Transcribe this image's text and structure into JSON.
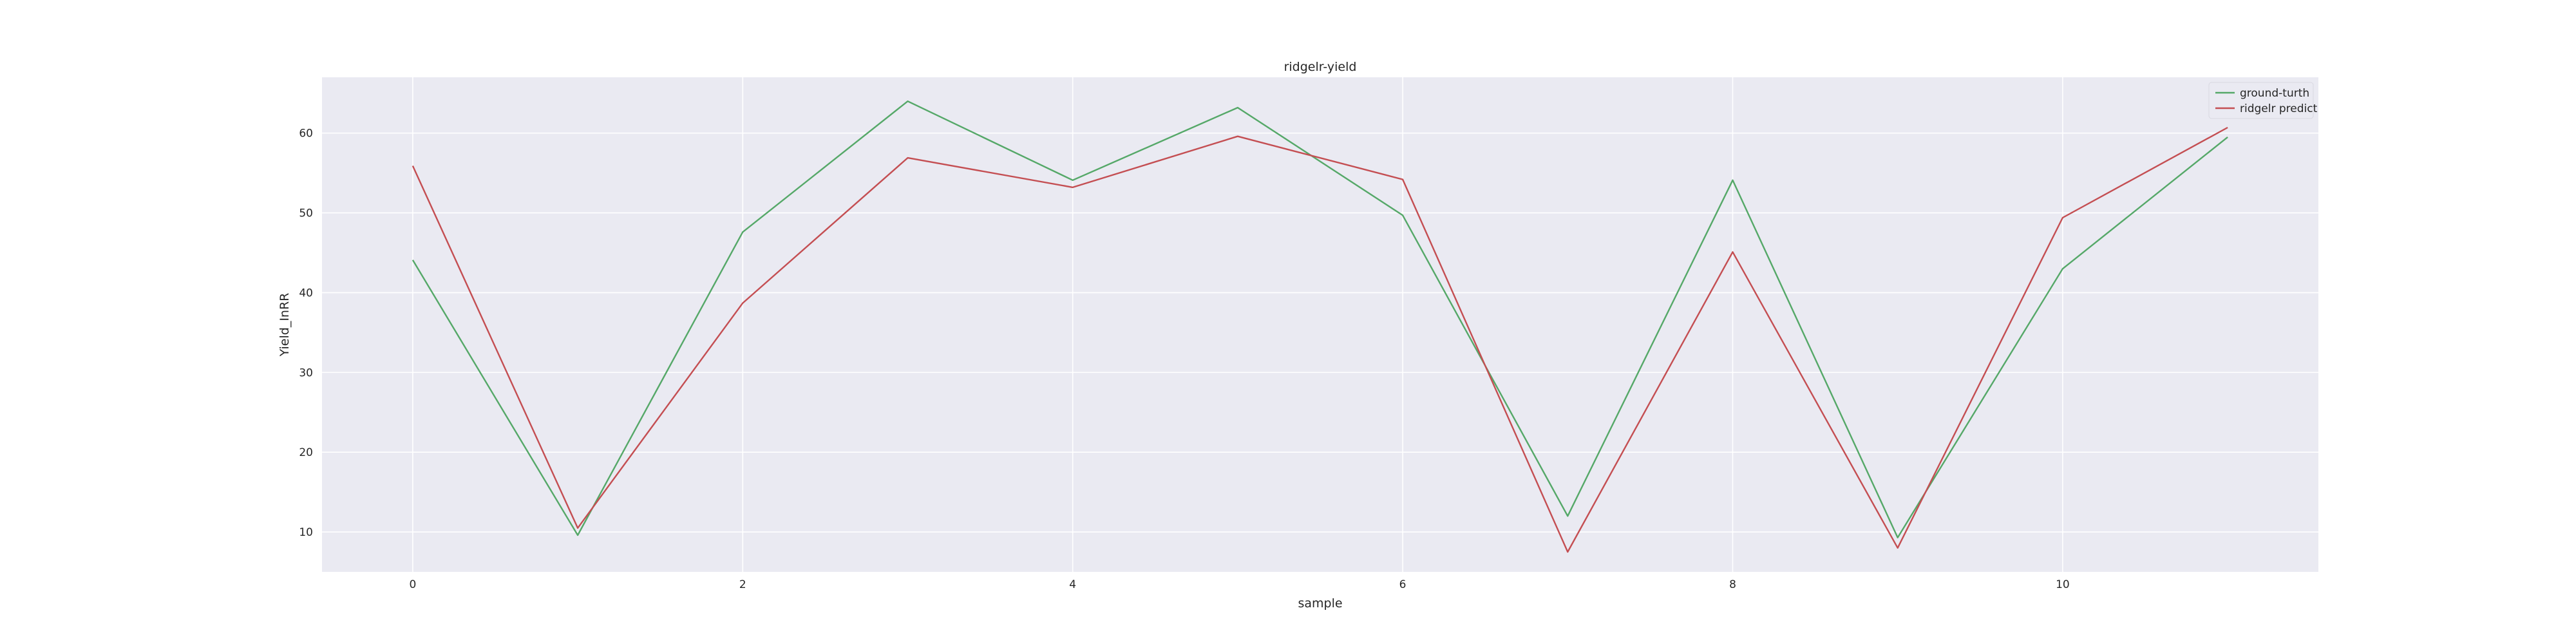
{
  "chart_data": {
    "type": "line",
    "title": "ridgelr-yield",
    "xlabel": "sample",
    "ylabel": "Yield_InRR",
    "x": [
      0,
      1,
      2,
      3,
      4,
      5,
      6,
      7,
      8,
      9,
      10,
      11
    ],
    "xlim": [
      -0.55,
      11.55
    ],
    "ylim": [
      5,
      67
    ],
    "xticks": [
      0,
      2,
      4,
      6,
      8,
      10
    ],
    "yticks": [
      10,
      20,
      30,
      40,
      50,
      60
    ],
    "grid": true,
    "legend_position": "top-right",
    "background_color": "#eaeaf2",
    "series": [
      {
        "name": "ground-turth",
        "color": "#55a868",
        "values": [
          44.1,
          9.6,
          47.6,
          64.0,
          54.1,
          63.2,
          49.7,
          12.0,
          54.1,
          9.3,
          43.0,
          59.5
        ]
      },
      {
        "name": "ridgelr predict",
        "color": "#c44e52",
        "values": [
          55.9,
          10.5,
          38.7,
          56.9,
          53.2,
          59.6,
          54.2,
          7.5,
          45.1,
          8.0,
          49.4,
          60.7
        ]
      }
    ]
  }
}
